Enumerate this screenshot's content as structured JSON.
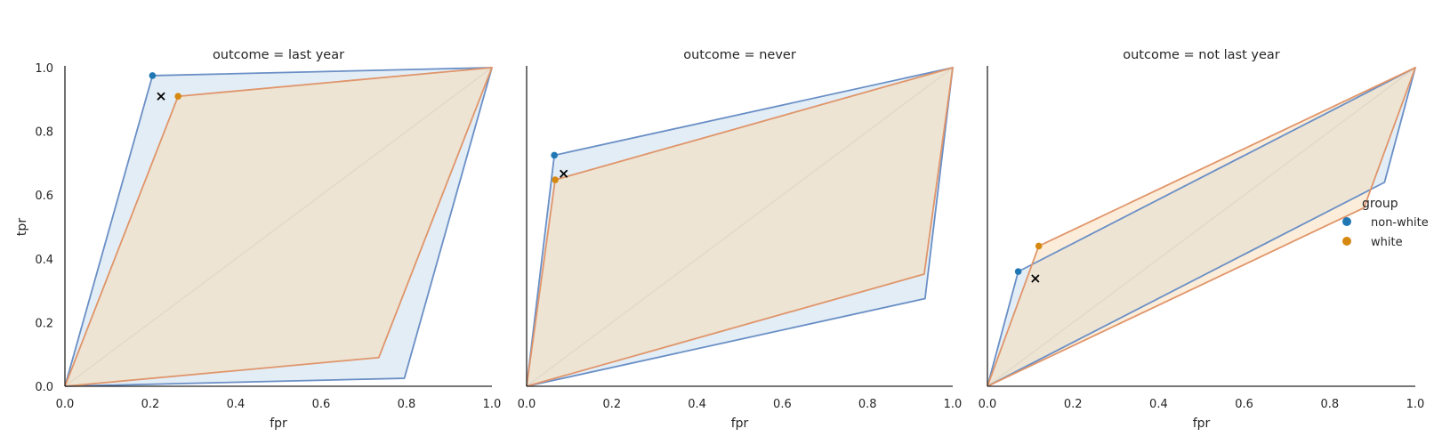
{
  "colors": {
    "non_white_line": "#6a8fc6",
    "non_white_fill": "#c8dcec",
    "non_white_marker": "#1f77b4",
    "white_line": "#e0956a",
    "white_fill": "#f7dcb4",
    "white_marker": "#d68910",
    "diagonal": "#d3d3d3",
    "axis": "#262626"
  },
  "legend": {
    "title": "group",
    "entries": [
      {
        "key": "non_white",
        "label": "non-white"
      },
      {
        "key": "white",
        "label": "white"
      }
    ]
  },
  "chart_data": [
    {
      "type": "scatter",
      "title": "outcome = last year",
      "xlabel": "fpr",
      "ylabel": "tpr",
      "xlim": [
        0,
        1
      ],
      "ylim": [
        0,
        1
      ],
      "xticks": [
        "0.0",
        "0.2",
        "0.4",
        "0.6",
        "0.8",
        "1.0"
      ],
      "yticks": [
        "0.0",
        "0.2",
        "0.4",
        "0.6",
        "0.8",
        "1.0"
      ],
      "series": [
        {
          "name": "non-white",
          "key": "non_white",
          "point": [
            0.205,
            0.975
          ],
          "polygon": [
            [
              0,
              0
            ],
            [
              0.205,
              0.975
            ],
            [
              1,
              1
            ],
            [
              0.795,
              0.025
            ],
            [
              0,
              0
            ]
          ]
        },
        {
          "name": "white",
          "key": "white",
          "point": [
            0.265,
            0.91
          ],
          "polygon": [
            [
              0,
              0
            ],
            [
              0.265,
              0.91
            ],
            [
              1,
              1
            ],
            [
              0.735,
              0.09
            ],
            [
              0,
              0
            ]
          ]
        }
      ],
      "cross_marker": [
        0.225,
        0.91
      ]
    },
    {
      "type": "scatter",
      "title": "outcome = never",
      "xlabel": "fpr",
      "ylabel": "",
      "xlim": [
        0,
        1
      ],
      "ylim": [
        0,
        1
      ],
      "xticks": [
        "0.0",
        "0.2",
        "0.4",
        "0.6",
        "0.8",
        "1.0"
      ],
      "yticks": [],
      "series": [
        {
          "name": "non-white",
          "key": "non_white",
          "point": [
            0.065,
            0.725
          ],
          "polygon": [
            [
              0,
              0
            ],
            [
              0.065,
              0.725
            ],
            [
              1,
              1
            ],
            [
              0.935,
              0.275
            ],
            [
              0,
              0
            ]
          ]
        },
        {
          "name": "white",
          "key": "white",
          "point": [
            0.067,
            0.648
          ],
          "polygon": [
            [
              0,
              0
            ],
            [
              0.067,
              0.648
            ],
            [
              1,
              1
            ],
            [
              0.933,
              0.352
            ],
            [
              0,
              0
            ]
          ]
        }
      ],
      "cross_marker": [
        0.087,
        0.667
      ]
    },
    {
      "type": "scatter",
      "title": "outcome = not last year",
      "xlabel": "fpr",
      "ylabel": "",
      "xlim": [
        0,
        1
      ],
      "ylim": [
        0,
        1
      ],
      "xticks": [
        "0.0",
        "0.2",
        "0.4",
        "0.6",
        "0.8",
        "1.0"
      ],
      "yticks": [],
      "series": [
        {
          "name": "non-white",
          "key": "non_white",
          "point": [
            0.072,
            0.36
          ],
          "polygon": [
            [
              0,
              0
            ],
            [
              0.072,
              0.36
            ],
            [
              1,
              1
            ],
            [
              0.928,
              0.64
            ],
            [
              0,
              0
            ]
          ]
        },
        {
          "name": "white",
          "key": "white",
          "point": [
            0.12,
            0.44
          ],
          "polygon": [
            [
              0,
              0
            ],
            [
              0.12,
              0.44
            ],
            [
              1,
              1
            ],
            [
              0.88,
              0.56
            ],
            [
              0,
              0
            ]
          ]
        }
      ],
      "cross_marker": [
        0.112,
        0.338
      ]
    }
  ]
}
